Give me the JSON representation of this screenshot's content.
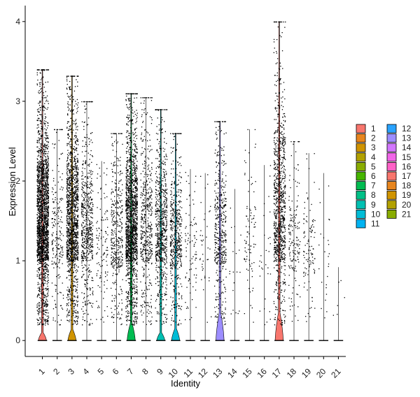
{
  "chart_data": {
    "type": "violin",
    "title": "",
    "xlabel": "Identity",
    "ylabel": "Expression Level",
    "ylim": [
      -0.2,
      4.2
    ],
    "yticks": [
      0,
      1,
      2,
      3,
      4
    ],
    "grid": false,
    "legend_position": "right",
    "points_overlay": true,
    "categories": [
      "1",
      "2",
      "3",
      "4",
      "5",
      "6",
      "7",
      "8",
      "9",
      "10",
      "11",
      "12",
      "13",
      "14",
      "15",
      "16",
      "17",
      "18",
      "19",
      "20",
      "21"
    ],
    "colors": [
      "#F8766D",
      "#E7851E",
      "#D09400",
      "#B2A100",
      "#89AC00",
      "#45B500",
      "#00BC51",
      "#00C087",
      "#00C0B2",
      "#00BCD6",
      "#00B3F2",
      "#29A3FF",
      "#9C8DFF",
      "#D277FF",
      "#F166E8",
      "#FF61C7",
      "#F8766D",
      "#E7851E",
      "#D09400",
      "#B2A100",
      "#89AC00"
    ],
    "series": [
      {
        "name": "1",
        "max": 3.4,
        "nonzero_points": 2200,
        "violin_width": 0.55,
        "bump_height": 0.1
      },
      {
        "name": "2",
        "max": 2.65,
        "nonzero_points": 220,
        "violin_width": 0.0,
        "bump_height": 0.0
      },
      {
        "name": "3",
        "max": 3.32,
        "nonzero_points": 1500,
        "violin_width": 0.55,
        "bump_height": 0.14
      },
      {
        "name": "4",
        "max": 3.0,
        "nonzero_points": 600,
        "violin_width": 0.0,
        "bump_height": 0.0
      },
      {
        "name": "5",
        "max": 2.25,
        "nonzero_points": 120,
        "violin_width": 0.0,
        "bump_height": 0.0
      },
      {
        "name": "6",
        "max": 2.6,
        "nonzero_points": 400,
        "violin_width": 0.0,
        "bump_height": 0.0
      },
      {
        "name": "7",
        "max": 3.1,
        "nonzero_points": 1700,
        "violin_width": 0.55,
        "bump_height": 0.22
      },
      {
        "name": "8",
        "max": 3.05,
        "nonzero_points": 500,
        "violin_width": 0.0,
        "bump_height": 0.0
      },
      {
        "name": "9",
        "max": 2.9,
        "nonzero_points": 700,
        "violin_width": 0.55,
        "bump_height": 0.1
      },
      {
        "name": "10",
        "max": 2.6,
        "nonzero_points": 500,
        "violin_width": 0.55,
        "bump_height": 0.15
      },
      {
        "name": "11",
        "max": 2.15,
        "nonzero_points": 90,
        "violin_width": 0.0,
        "bump_height": 0.0
      },
      {
        "name": "12",
        "max": 2.1,
        "nonzero_points": 40,
        "violin_width": 0.0,
        "bump_height": 0.0
      },
      {
        "name": "13",
        "max": 2.75,
        "nonzero_points": 450,
        "violin_width": 0.55,
        "bump_height": 0.35
      },
      {
        "name": "14",
        "max": 1.9,
        "nonzero_points": 20,
        "violin_width": 0.0,
        "bump_height": 0.0
      },
      {
        "name": "15",
        "max": 2.65,
        "nonzero_points": 90,
        "violin_width": 0.0,
        "bump_height": 0.0
      },
      {
        "name": "16",
        "max": 2.2,
        "nonzero_points": 30,
        "violin_width": 0.0,
        "bump_height": 0.0
      },
      {
        "name": "17",
        "max": 4.0,
        "nonzero_points": 950,
        "violin_width": 0.55,
        "bump_height": 0.35
      },
      {
        "name": "18",
        "max": 2.5,
        "nonzero_points": 160,
        "violin_width": 0.0,
        "bump_height": 0.0
      },
      {
        "name": "19",
        "max": 2.35,
        "nonzero_points": 110,
        "violin_width": 0.0,
        "bump_height": 0.0
      },
      {
        "name": "20",
        "max": 2.1,
        "nonzero_points": 25,
        "violin_width": 0.0,
        "bump_height": 0.0
      },
      {
        "name": "21",
        "max": 0.92,
        "nonzero_points": 6,
        "violin_width": 0.0,
        "bump_height": 0.0
      }
    ]
  }
}
